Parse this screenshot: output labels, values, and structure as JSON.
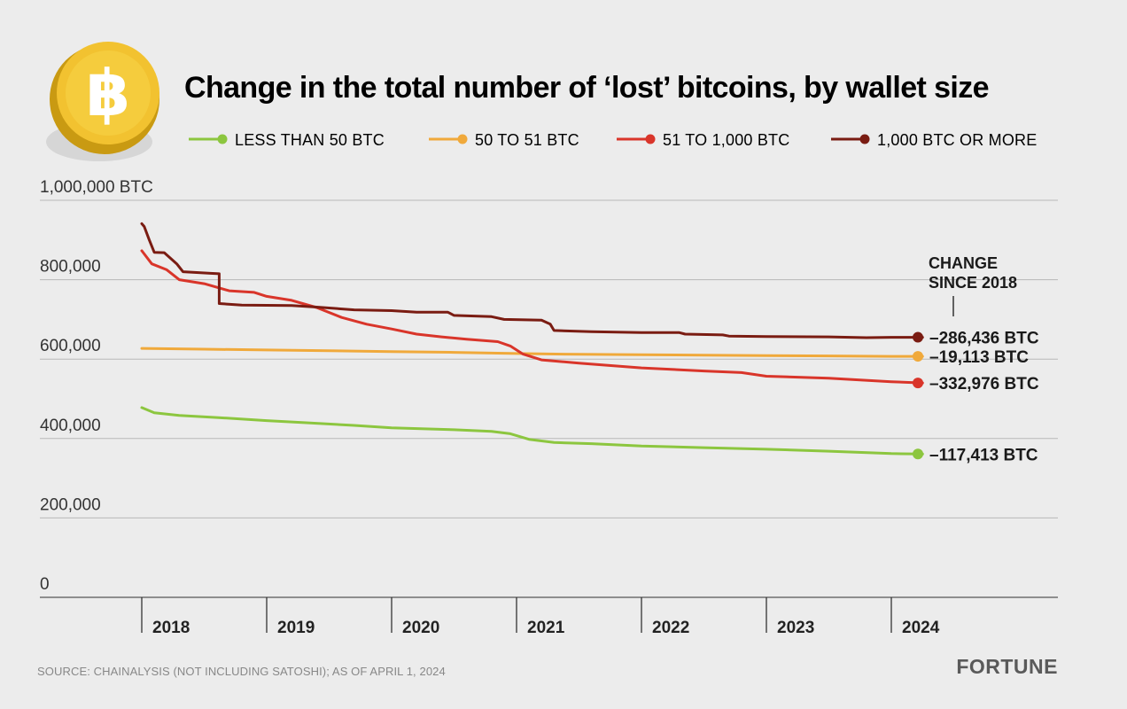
{
  "chart_data": {
    "type": "line",
    "title": "Change in the total number of ‘lost’ bitcoins, by wallet size",
    "y_unit_label": "1,000,000 BTC",
    "ylim": [
      0,
      1000000
    ],
    "yticks": [
      {
        "value": 1000000,
        "label": "1,000,000 BTC"
      },
      {
        "value": 800000,
        "label": "800,000"
      },
      {
        "value": 600000,
        "label": "600,000"
      },
      {
        "value": 400000,
        "label": "400,000"
      },
      {
        "value": 200000,
        "label": "200,000"
      },
      {
        "value": 0,
        "label": "0"
      }
    ],
    "xlim": [
      2018.0,
      2024.25
    ],
    "xticks": [
      "2018",
      "2019",
      "2020",
      "2021",
      "2022",
      "2023",
      "2024"
    ],
    "grid": "horizontal",
    "legend_position": "top",
    "change_header": [
      "CHANGE",
      "SINCE 2018"
    ],
    "series": [
      {
        "name": "LESS THAN 50 BTC",
        "color": "#8cc63f",
        "change_label": "–117,413 BTC",
        "points": [
          [
            2018.0,
            478000
          ],
          [
            2018.1,
            465000
          ],
          [
            2018.3,
            458000
          ],
          [
            2018.6,
            453000
          ],
          [
            2019.0,
            445000
          ],
          [
            2019.3,
            440000
          ],
          [
            2019.7,
            433000
          ],
          [
            2020.0,
            427000
          ],
          [
            2020.5,
            422000
          ],
          [
            2020.8,
            418000
          ],
          [
            2020.95,
            412000
          ],
          [
            2021.1,
            398000
          ],
          [
            2021.3,
            390000
          ],
          [
            2021.6,
            387000
          ],
          [
            2022.0,
            381000
          ],
          [
            2022.5,
            377000
          ],
          [
            2023.0,
            373000
          ],
          [
            2023.5,
            368000
          ],
          [
            2024.0,
            362000
          ],
          [
            2024.25,
            361000
          ]
        ]
      },
      {
        "name": "50 TO 51 BTC",
        "color": "#f0a93b",
        "change_label": "–19,113 BTC",
        "points": [
          [
            2018.0,
            627000
          ],
          [
            2018.5,
            625000
          ],
          [
            2019.0,
            623000
          ],
          [
            2019.5,
            621000
          ],
          [
            2020.0,
            619000
          ],
          [
            2020.5,
            617000
          ],
          [
            2021.0,
            614000
          ],
          [
            2021.5,
            612000
          ],
          [
            2022.0,
            611000
          ],
          [
            2022.5,
            610000
          ],
          [
            2023.0,
            609000
          ],
          [
            2023.5,
            608000
          ],
          [
            2024.0,
            607000
          ],
          [
            2024.25,
            607000
          ]
        ]
      },
      {
        "name": "51 TO 1,000 BTC",
        "color": "#d9352a",
        "change_label": "–332,976 BTC",
        "points": [
          [
            2018.0,
            873000
          ],
          [
            2018.08,
            840000
          ],
          [
            2018.2,
            825000
          ],
          [
            2018.3,
            800000
          ],
          [
            2018.5,
            790000
          ],
          [
            2018.7,
            772000
          ],
          [
            2018.9,
            768000
          ],
          [
            2019.0,
            758000
          ],
          [
            2019.2,
            748000
          ],
          [
            2019.4,
            730000
          ],
          [
            2019.6,
            705000
          ],
          [
            2019.8,
            688000
          ],
          [
            2020.0,
            676000
          ],
          [
            2020.2,
            663000
          ],
          [
            2020.4,
            656000
          ],
          [
            2020.6,
            650000
          ],
          [
            2020.85,
            644000
          ],
          [
            2020.95,
            633000
          ],
          [
            2021.05,
            613000
          ],
          [
            2021.2,
            598000
          ],
          [
            2021.5,
            590000
          ],
          [
            2022.0,
            578000
          ],
          [
            2022.5,
            570000
          ],
          [
            2022.8,
            566000
          ],
          [
            2023.0,
            557000
          ],
          [
            2023.5,
            552000
          ],
          [
            2024.0,
            543000
          ],
          [
            2024.25,
            540000
          ]
        ]
      },
      {
        "name": "1,000 BTC OR MORE",
        "color": "#7a1c12",
        "change_label": "–286,436 BTC",
        "points": [
          [
            2018.0,
            941000
          ],
          [
            2018.02,
            934000
          ],
          [
            2018.06,
            900000
          ],
          [
            2018.1,
            869000
          ],
          [
            2018.18,
            868000
          ],
          [
            2018.22,
            857000
          ],
          [
            2018.28,
            840000
          ],
          [
            2018.33,
            820000
          ],
          [
            2018.55,
            816000
          ],
          [
            2018.62,
            815000
          ],
          [
            2018.62,
            740000
          ],
          [
            2018.8,
            736000
          ],
          [
            2019.2,
            735000
          ],
          [
            2019.4,
            731000
          ],
          [
            2019.7,
            724000
          ],
          [
            2020.0,
            722000
          ],
          [
            2020.2,
            718000
          ],
          [
            2020.45,
            718000
          ],
          [
            2020.5,
            710000
          ],
          [
            2020.8,
            707000
          ],
          [
            2020.9,
            700000
          ],
          [
            2021.2,
            698000
          ],
          [
            2021.27,
            688000
          ],
          [
            2021.3,
            672000
          ],
          [
            2021.6,
            669000
          ],
          [
            2022.0,
            667000
          ],
          [
            2022.3,
            667000
          ],
          [
            2022.35,
            663000
          ],
          [
            2022.65,
            661000
          ],
          [
            2022.7,
            658000
          ],
          [
            2023.0,
            657000
          ],
          [
            2023.5,
            656000
          ],
          [
            2023.8,
            654000
          ],
          [
            2024.0,
            655000
          ],
          [
            2024.25,
            655000
          ]
        ]
      }
    ]
  },
  "source_text": "SOURCE: CHAINALYSIS (NOT INCLUDING SATOSHI); AS OF APRIL 1, 2024",
  "brand": "FORTUNE",
  "colors": {
    "background": "#ececec",
    "grid": "#b8b8b8",
    "coin": "#f2c230"
  },
  "icons": {
    "logo": "bitcoin-coin-icon"
  }
}
